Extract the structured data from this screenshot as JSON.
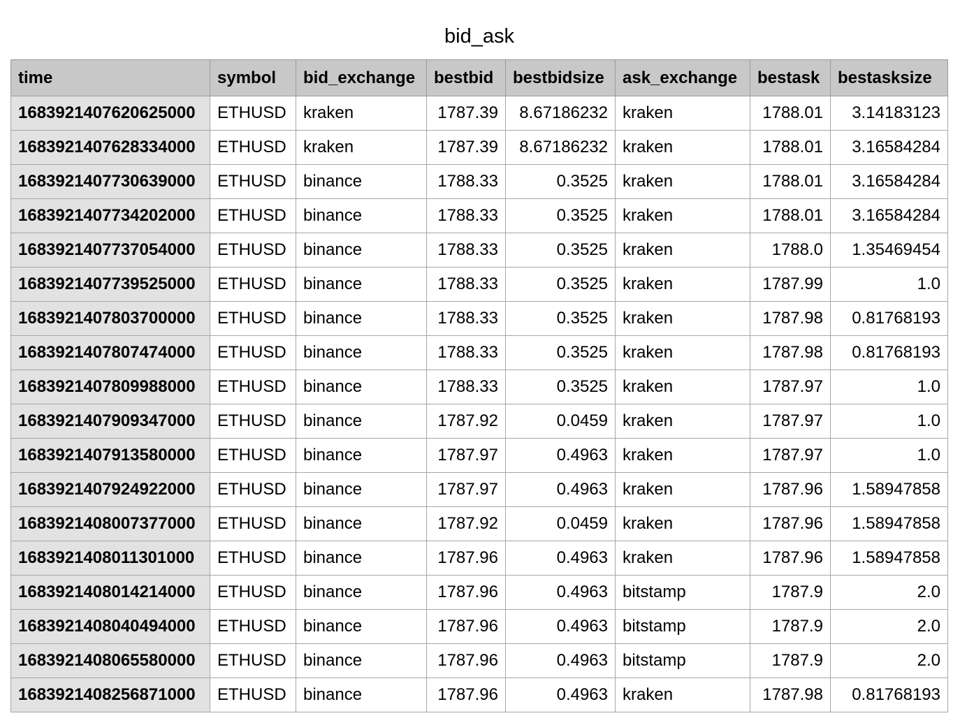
{
  "title": "bid_ask",
  "columns": [
    "time",
    "symbol",
    "bid_exchange",
    "bestbid",
    "bestbidsize",
    "ask_exchange",
    "bestask",
    "bestasksize"
  ],
  "rows": [
    [
      "1683921407620625000",
      "ETHUSD",
      "kraken",
      "1787.39",
      "8.67186232",
      "kraken",
      "1788.01",
      "3.14183123"
    ],
    [
      "1683921407628334000",
      "ETHUSD",
      "kraken",
      "1787.39",
      "8.67186232",
      "kraken",
      "1788.01",
      "3.16584284"
    ],
    [
      "1683921407730639000",
      "ETHUSD",
      "binance",
      "1788.33",
      "0.3525",
      "kraken",
      "1788.01",
      "3.16584284"
    ],
    [
      "1683921407734202000",
      "ETHUSD",
      "binance",
      "1788.33",
      "0.3525",
      "kraken",
      "1788.01",
      "3.16584284"
    ],
    [
      "1683921407737054000",
      "ETHUSD",
      "binance",
      "1788.33",
      "0.3525",
      "kraken",
      "1788.0",
      "1.35469454"
    ],
    [
      "1683921407739525000",
      "ETHUSD",
      "binance",
      "1788.33",
      "0.3525",
      "kraken",
      "1787.99",
      "1.0"
    ],
    [
      "1683921407803700000",
      "ETHUSD",
      "binance",
      "1788.33",
      "0.3525",
      "kraken",
      "1787.98",
      "0.81768193"
    ],
    [
      "1683921407807474000",
      "ETHUSD",
      "binance",
      "1788.33",
      "0.3525",
      "kraken",
      "1787.98",
      "0.81768193"
    ],
    [
      "1683921407809988000",
      "ETHUSD",
      "binance",
      "1788.33",
      "0.3525",
      "kraken",
      "1787.97",
      "1.0"
    ],
    [
      "1683921407909347000",
      "ETHUSD",
      "binance",
      "1787.92",
      "0.0459",
      "kraken",
      "1787.97",
      "1.0"
    ],
    [
      "1683921407913580000",
      "ETHUSD",
      "binance",
      "1787.97",
      "0.4963",
      "kraken",
      "1787.97",
      "1.0"
    ],
    [
      "1683921407924922000",
      "ETHUSD",
      "binance",
      "1787.97",
      "0.4963",
      "kraken",
      "1787.96",
      "1.58947858"
    ],
    [
      "1683921408007377000",
      "ETHUSD",
      "binance",
      "1787.92",
      "0.0459",
      "kraken",
      "1787.96",
      "1.58947858"
    ],
    [
      "1683921408011301000",
      "ETHUSD",
      "binance",
      "1787.96",
      "0.4963",
      "kraken",
      "1787.96",
      "1.58947858"
    ],
    [
      "1683921408014214000",
      "ETHUSD",
      "binance",
      "1787.96",
      "0.4963",
      "bitstamp",
      "1787.9",
      "2.0"
    ],
    [
      "1683921408040494000",
      "ETHUSD",
      "binance",
      "1787.96",
      "0.4963",
      "bitstamp",
      "1787.9",
      "2.0"
    ],
    [
      "1683921408065580000",
      "ETHUSD",
      "binance",
      "1787.96",
      "0.4963",
      "bitstamp",
      "1787.9",
      "2.0"
    ],
    [
      "1683921408256871000",
      "ETHUSD",
      "binance",
      "1787.96",
      "0.4963",
      "kraken",
      "1787.98",
      "0.81768193"
    ]
  ]
}
